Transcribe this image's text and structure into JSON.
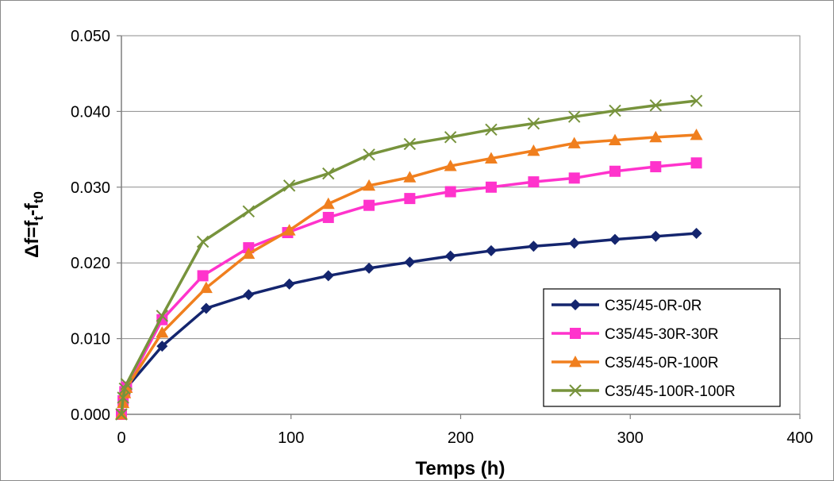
{
  "chart_data": {
    "type": "line",
    "xlabel": "Temps (h)",
    "ylabel": "Δf=ft-ft0",
    "xlim": [
      0,
      400
    ],
    "ylim": [
      0,
      0.05
    ],
    "xticks": [
      "0",
      "100",
      "200",
      "300",
      "400"
    ],
    "yticks": [
      "0.000",
      "0.010",
      "0.020",
      "0.030",
      "0.040",
      "0.050"
    ],
    "grid": "horizontal",
    "legend_position": "bottom-right",
    "series": [
      {
        "name": "C35/45-0R-0R",
        "color": "#14256e",
        "marker": "diamond",
        "x": [
          0,
          1,
          2,
          3,
          24,
          50,
          75,
          99,
          122,
          146,
          170,
          194,
          218,
          243,
          267,
          291,
          315,
          339
        ],
        "y": [
          0.0,
          0.0015,
          0.0028,
          0.0035,
          0.009,
          0.014,
          0.0158,
          0.0172,
          0.0183,
          0.0193,
          0.0201,
          0.0209,
          0.0216,
          0.0222,
          0.0226,
          0.0231,
          0.0235,
          0.0239
        ]
      },
      {
        "name": "C35/45-30R-30R",
        "color": "#ff33cc",
        "marker": "square",
        "x": [
          0,
          1,
          2,
          3,
          24,
          48,
          75,
          98,
          122,
          146,
          170,
          194,
          218,
          243,
          267,
          291,
          315,
          339
        ],
        "y": [
          0.0,
          0.0018,
          0.003,
          0.0036,
          0.0125,
          0.0183,
          0.022,
          0.024,
          0.026,
          0.0276,
          0.0285,
          0.0294,
          0.03,
          0.0307,
          0.0312,
          0.0321,
          0.0327,
          0.0332
        ]
      },
      {
        "name": "C35/45-0R-100R",
        "color": "#f07f1e",
        "marker": "triangle",
        "x": [
          0,
          1,
          2,
          3,
          24,
          50,
          75,
          99,
          122,
          146,
          170,
          194,
          218,
          243,
          267,
          291,
          315,
          339
        ],
        "y": [
          0.0,
          0.0015,
          0.0028,
          0.0035,
          0.0108,
          0.0167,
          0.0212,
          0.0243,
          0.0278,
          0.0302,
          0.0313,
          0.0328,
          0.0338,
          0.0348,
          0.0358,
          0.0362,
          0.0366,
          0.0369
        ]
      },
      {
        "name": "C35/45-100R-100R",
        "color": "#77933c",
        "marker": "x",
        "x": [
          0,
          1,
          2,
          3,
          24,
          48,
          75,
          99,
          122,
          146,
          170,
          194,
          218,
          243,
          267,
          291,
          315,
          339
        ],
        "y": [
          0.0,
          0.0022,
          0.0034,
          0.004,
          0.013,
          0.0228,
          0.0268,
          0.0302,
          0.0318,
          0.0343,
          0.0357,
          0.0366,
          0.0376,
          0.0384,
          0.0393,
          0.0401,
          0.0408,
          0.0414
        ]
      }
    ]
  }
}
